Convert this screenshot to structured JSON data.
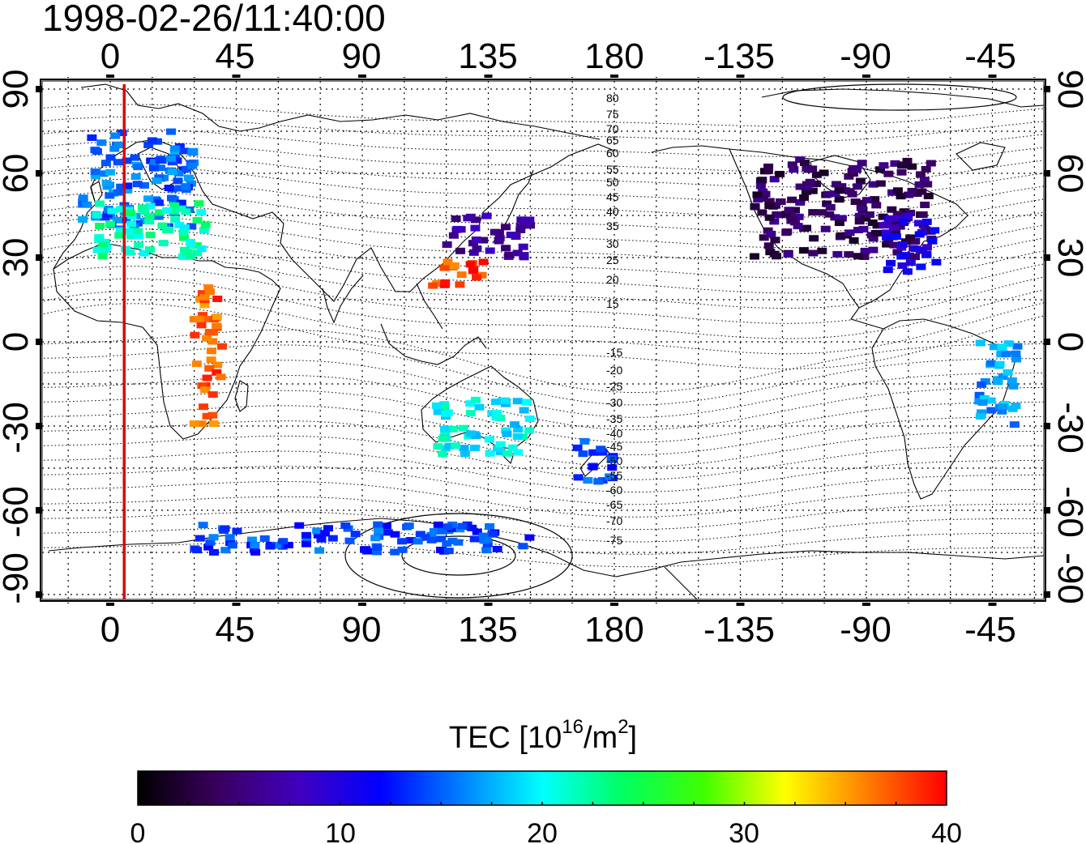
{
  "timestamp": "1998-02-26/11:40:00",
  "top_lon_labels": [
    "0",
    "45",
    "90",
    "135",
    "180",
    "-135",
    "-90",
    "-45"
  ],
  "bottom_lon_labels": [
    "0",
    "45",
    "90",
    "135",
    "180",
    "-135",
    "-90",
    "-45"
  ],
  "left_lat_labels": [
    "90",
    "60",
    "30",
    "0",
    "-30",
    "-60",
    "-90"
  ],
  "right_lat_labels": [
    "90",
    "60",
    "30",
    "0",
    "-30",
    "-60",
    "-90"
  ],
  "contour_labels": [
    "80",
    "75",
    "70",
    "65",
    "60",
    "55",
    "50",
    "45",
    "40",
    "35",
    "30",
    "25",
    "20",
    "15",
    "-15",
    "-20",
    "-25",
    "-30",
    "-35",
    "-40",
    "-45",
    "-50",
    "-55",
    "-60",
    "-65",
    "-70",
    "-75"
  ],
  "colorbar": {
    "title_main": "TEC  [10",
    "title_exp1": "16",
    "title_mid": "/m",
    "title_exp2": "2",
    "title_end": "]",
    "ticks": [
      "0",
      "10",
      "20",
      "30",
      "40"
    ],
    "min": 0,
    "max": 40,
    "stops": [
      "#000000",
      "#3a0060",
      "#4000c0",
      "#0000ff",
      "#0080ff",
      "#00ffff",
      "#00ff60",
      "#40ff00",
      "#ffff00",
      "#ff8000",
      "#ff0000"
    ]
  },
  "terminator_color": "#e00000",
  "chart_data": {
    "type": "heatmap",
    "title": "1998-02-26/11:40:00",
    "colorbar_label": "TEC [10^16/m^2]",
    "value_range": [
      0,
      40
    ],
    "lon_ticks": [
      0,
      45,
      90,
      135,
      180,
      -135,
      -90,
      -45
    ],
    "lat_ticks": [
      90,
      60,
      30,
      0,
      -30,
      -60,
      -90
    ],
    "terminator_lon": 5,
    "regions": [
      {
        "lon_min": -10,
        "lon_max": 30,
        "lat_min": 40,
        "lat_max": 75,
        "tec": 15
      },
      {
        "lon_min": -5,
        "lon_max": 35,
        "lat_min": 30,
        "lat_max": 50,
        "tec": 22
      },
      {
        "lon_min": 120,
        "lon_max": 150,
        "lat_min": 30,
        "lat_max": 45,
        "tec": 6
      },
      {
        "lon_min": 115,
        "lon_max": 135,
        "lat_min": 20,
        "lat_max": 30,
        "tec": 38
      },
      {
        "lon_min": -130,
        "lon_max": -65,
        "lat_min": 30,
        "lat_max": 65,
        "tec": 4
      },
      {
        "lon_min": -85,
        "lon_max": -65,
        "lat_min": 25,
        "lat_max": 45,
        "tec": 10
      },
      {
        "lon_min": 30,
        "lon_max": 40,
        "lat_min": -30,
        "lat_max": 20,
        "tec": 37
      },
      {
        "lon_min": 115,
        "lon_max": 150,
        "lat_min": -40,
        "lat_max": -20,
        "tec": 20
      },
      {
        "lon_min": 165,
        "lon_max": 180,
        "lat_min": -50,
        "lat_max": -35,
        "tec": 14
      },
      {
        "lon_min": -50,
        "lon_max": -35,
        "lat_min": -30,
        "lat_max": 0,
        "tec": 17
      },
      {
        "lon_min": 30,
        "lon_max": 150,
        "lat_min": -75,
        "lat_max": -65,
        "tec": 14
      }
    ]
  }
}
